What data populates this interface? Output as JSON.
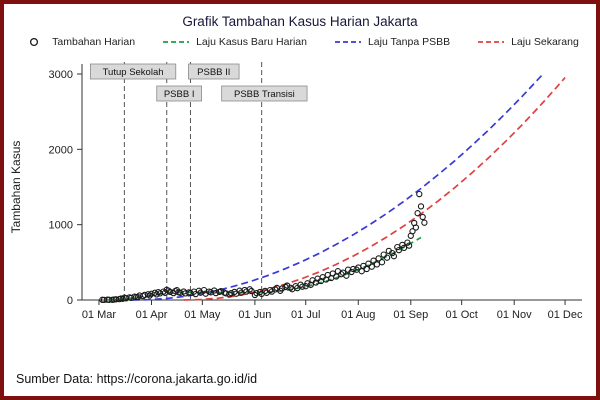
{
  "title": "Grafik Tambahan Kasus Harian Jakarta",
  "footer": "Sumber Data: https://corona.jakarta.go.id/id",
  "frame": {
    "border_color": "#7f1010",
    "background": "#ffffff"
  },
  "legend": [
    {
      "label": "Tambahan Harian",
      "type": "marker",
      "color": "#1a1a1a"
    },
    {
      "label": "Laju Kasus Baru Harian",
      "type": "dash",
      "color": "#1f9d44"
    },
    {
      "label": "Laju Tanpa PSBB",
      "type": "dash",
      "color": "#3a3ad4"
    },
    {
      "label": "Laju Sekarang",
      "type": "dash",
      "color": "#e04040"
    }
  ],
  "chart_data": {
    "type": "scatter",
    "title": "Grafik Tambahan Kasus Harian Jakarta",
    "xlabel": "",
    "ylabel": "Tambahan Kasus",
    "ylim": [
      0,
      3000
    ],
    "yticks": [
      0,
      1000,
      2000,
      3000
    ],
    "x_unit": "days since 01 Mar 2020",
    "xlim": [
      -10,
      285
    ],
    "grid": false,
    "legend_position": "top",
    "xticks": [
      {
        "day": 0,
        "label": "01 Mar"
      },
      {
        "day": 31,
        "label": "01 Apr"
      },
      {
        "day": 61,
        "label": "01 May"
      },
      {
        "day": 92,
        "label": "01 Jun"
      },
      {
        "day": 122,
        "label": "01 Jul"
      },
      {
        "day": 153,
        "label": "01 Aug"
      },
      {
        "day": 184,
        "label": "01 Sep"
      },
      {
        "day": 214,
        "label": "01 Oct"
      },
      {
        "day": 245,
        "label": "01 Nov"
      },
      {
        "day": 275,
        "label": "01 Dec"
      }
    ],
    "events": [
      {
        "day": 15,
        "label": "Tutup Sekolah",
        "row": 1,
        "dx": -34
      },
      {
        "day": 40,
        "label": "PSBB I",
        "row": 2,
        "dx": -10
      },
      {
        "day": 54,
        "label": "PSBB II",
        "row": 1,
        "dx": -2
      },
      {
        "day": 96,
        "label": "PSBB Transisi",
        "row": 2,
        "dx": -40
      }
    ],
    "scatter": {
      "name": "Tambahan Harian",
      "color": "#1a1a1a",
      "points": [
        [
          2,
          2
        ],
        [
          3,
          1
        ],
        [
          5,
          4
        ],
        [
          6,
          3
        ],
        [
          8,
          2
        ],
        [
          9,
          6
        ],
        [
          10,
          9
        ],
        [
          12,
          12
        ],
        [
          13,
          20
        ],
        [
          14,
          16
        ],
        [
          15,
          30
        ],
        [
          16,
          22
        ],
        [
          18,
          35
        ],
        [
          19,
          28
        ],
        [
          21,
          45
        ],
        [
          22,
          40
        ],
        [
          23,
          38
        ],
        [
          24,
          60
        ],
        [
          26,
          52
        ],
        [
          27,
          68
        ],
        [
          29,
          75
        ],
        [
          30,
          60
        ],
        [
          31,
          82
        ],
        [
          33,
          95
        ],
        [
          34,
          74
        ],
        [
          35,
          105
        ],
        [
          36,
          88
        ],
        [
          38,
          112
        ],
        [
          39,
          96
        ],
        [
          40,
          135
        ],
        [
          41,
          125
        ],
        [
          42,
          108
        ],
        [
          44,
          92
        ],
        [
          45,
          118
        ],
        [
          46,
          130
        ],
        [
          47,
          102
        ],
        [
          48,
          95
        ],
        [
          50,
          113
        ],
        [
          51,
          87
        ],
        [
          53,
          101
        ],
        [
          54,
          93
        ],
        [
          56,
          112
        ],
        [
          57,
          78
        ],
        [
          59,
          122
        ],
        [
          60,
          97
        ],
        [
          62,
          131
        ],
        [
          63,
          84
        ],
        [
          65,
          112
        ],
        [
          66,
          102
        ],
        [
          68,
          126
        ],
        [
          69,
          92
        ],
        [
          71,
          107
        ],
        [
          72,
          117
        ],
        [
          74,
          97
        ],
        [
          75,
          88
        ],
        [
          77,
          73
        ],
        [
          78,
          92
        ],
        [
          80,
          107
        ],
        [
          81,
          83
        ],
        [
          83,
          123
        ],
        [
          84,
          97
        ],
        [
          86,
          133
        ],
        [
          87,
          112
        ],
        [
          89,
          142
        ],
        [
          90,
          120
        ],
        [
          92,
          66
        ],
        [
          93,
          91
        ],
        [
          95,
          106
        ],
        [
          96,
          81
        ],
        [
          98,
          121
        ],
        [
          99,
          96
        ],
        [
          101,
          131
        ],
        [
          102,
          111
        ],
        [
          104,
          141
        ],
        [
          105,
          161
        ],
        [
          107,
          122
        ],
        [
          108,
          152
        ],
        [
          110,
          172
        ],
        [
          111,
          192
        ],
        [
          113,
          162
        ],
        [
          114,
          143
        ],
        [
          116,
          183
        ],
        [
          117,
          158
        ],
        [
          119,
          203
        ],
        [
          120,
          176
        ],
        [
          122,
          183
        ],
        [
          123,
          222
        ],
        [
          125,
          202
        ],
        [
          126,
          262
        ],
        [
          128,
          232
        ],
        [
          129,
          283
        ],
        [
          131,
          252
        ],
        [
          132,
          302
        ],
        [
          134,
          272
        ],
        [
          135,
          332
        ],
        [
          137,
          292
        ],
        [
          138,
          352
        ],
        [
          140,
          312
        ],
        [
          141,
          382
        ],
        [
          143,
          342
        ],
        [
          144,
          362
        ],
        [
          146,
          322
        ],
        [
          147,
          402
        ],
        [
          149,
          372
        ],
        [
          150,
          412
        ],
        [
          152,
          402
        ],
        [
          153,
          432
        ],
        [
          155,
          382
        ],
        [
          156,
          452
        ],
        [
          158,
          412
        ],
        [
          159,
          482
        ],
        [
          161,
          442
        ],
        [
          162,
          522
        ],
        [
          164,
          472
        ],
        [
          165,
          552
        ],
        [
          167,
          502
        ],
        [
          168,
          602
        ],
        [
          170,
          562
        ],
        [
          171,
          652
        ],
        [
          173,
          622
        ],
        [
          174,
          582
        ],
        [
          176,
          702
        ],
        [
          177,
          662
        ],
        [
          179,
          732
        ],
        [
          180,
          692
        ],
        [
          182,
          762
        ],
        [
          183,
          722
        ],
        [
          184,
          852
        ],
        [
          185,
          912
        ],
        [
          186,
          1022
        ],
        [
          187,
          962
        ],
        [
          188,
          1152
        ],
        [
          189,
          1406
        ],
        [
          190,
          1242
        ],
        [
          191,
          1102
        ],
        [
          192,
          1026
        ]
      ]
    },
    "series": [
      {
        "name": "Laju Kasus Baru Harian",
        "color": "#1f9d44",
        "dash": "6,4",
        "points": [
          [
            5,
            3
          ],
          [
            10,
            8
          ],
          [
            15,
            16
          ],
          [
            20,
            28
          ],
          [
            25,
            45
          ],
          [
            30,
            62
          ],
          [
            35,
            78
          ],
          [
            40,
            90
          ],
          [
            45,
            98
          ],
          [
            50,
            102
          ],
          [
            55,
            104
          ],
          [
            60,
            103
          ],
          [
            65,
            101
          ],
          [
            70,
            100
          ],
          [
            75,
            99
          ],
          [
            80,
            99
          ],
          [
            85,
            100
          ],
          [
            90,
            100
          ],
          [
            95,
            101
          ],
          [
            100,
            106
          ],
          [
            105,
            115
          ],
          [
            110,
            128
          ],
          [
            115,
            146
          ],
          [
            120,
            168
          ],
          [
            125,
            194
          ],
          [
            130,
            224
          ],
          [
            135,
            258
          ],
          [
            140,
            295
          ],
          [
            145,
            335
          ],
          [
            150,
            378
          ],
          [
            155,
            424
          ],
          [
            160,
            473
          ],
          [
            165,
            525
          ],
          [
            170,
            580
          ],
          [
            175,
            638
          ],
          [
            180,
            700
          ],
          [
            185,
            764
          ],
          [
            190,
            830
          ]
        ]
      },
      {
        "name": "Laju Tanpa PSBB",
        "color": "#3a3ad4",
        "dash": "7,4",
        "points": [
          [
            20,
            0
          ],
          [
            30,
            5
          ],
          [
            40,
            20
          ],
          [
            50,
            46
          ],
          [
            60,
            82
          ],
          [
            70,
            128
          ],
          [
            80,
            184
          ],
          [
            90,
            251
          ],
          [
            100,
            328
          ],
          [
            110,
            415
          ],
          [
            120,
            512
          ],
          [
            130,
            620
          ],
          [
            140,
            738
          ],
          [
            150,
            866
          ],
          [
            160,
            1004
          ],
          [
            170,
            1152
          ],
          [
            180,
            1311
          ],
          [
            190,
            1480
          ],
          [
            200,
            1660
          ],
          [
            210,
            1849
          ],
          [
            220,
            2049
          ],
          [
            230,
            2259
          ],
          [
            240,
            2479
          ],
          [
            250,
            2710
          ],
          [
            260,
            2951
          ],
          [
            262,
            3000
          ]
        ]
      },
      {
        "name": "Laju Sekarang",
        "color": "#e04040",
        "dash": "7,4",
        "points": [
          [
            50,
            0
          ],
          [
            60,
            6
          ],
          [
            70,
            23
          ],
          [
            80,
            52
          ],
          [
            90,
            93
          ],
          [
            100,
            146
          ],
          [
            110,
            210
          ],
          [
            120,
            286
          ],
          [
            130,
            373
          ],
          [
            140,
            472
          ],
          [
            150,
            583
          ],
          [
            160,
            705
          ],
          [
            170,
            839
          ],
          [
            180,
            985
          ],
          [
            190,
            1143
          ],
          [
            200,
            1312
          ],
          [
            210,
            1493
          ],
          [
            220,
            1686
          ],
          [
            230,
            1890
          ],
          [
            240,
            2106
          ],
          [
            250,
            2333
          ],
          [
            260,
            2572
          ],
          [
            270,
            2823
          ],
          [
            275,
            2952
          ]
        ]
      }
    ]
  }
}
